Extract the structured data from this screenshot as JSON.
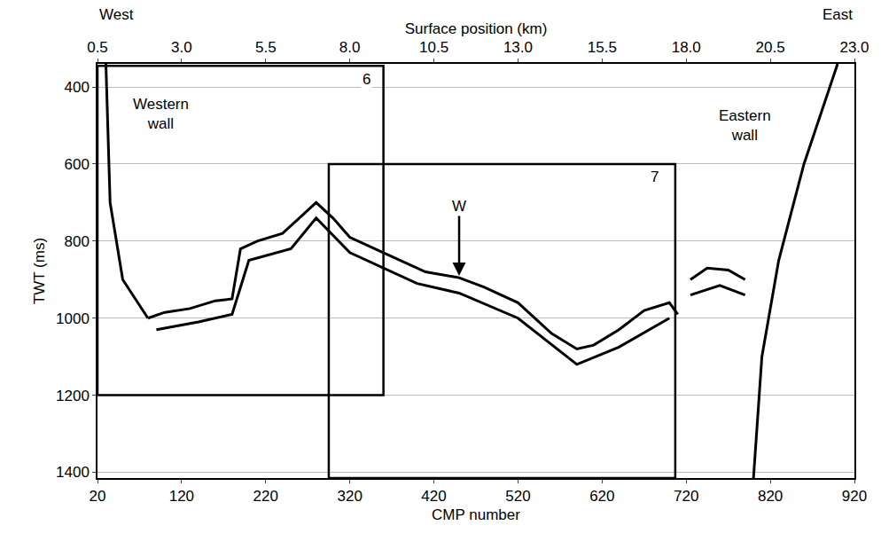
{
  "chart_data": {
    "type": "line",
    "x_label": "CMP number",
    "x2_label": "Surface position (km)",
    "y_label": "TWT (ms)",
    "corner_labels": [
      "West",
      "East"
    ],
    "xlim": [
      20,
      920
    ],
    "xticks": [
      20,
      120,
      220,
      320,
      420,
      520,
      620,
      720,
      820,
      920
    ],
    "x2lim": [
      0.5,
      23.0
    ],
    "x2ticks": [
      0.5,
      {
        "value": 3,
        "label": "3.0"
      },
      5.5,
      {
        "value": 8,
        "label": "8.0"
      },
      10.5,
      {
        "value": 13,
        "label": "13.0"
      },
      15.5,
      {
        "value": 18,
        "label": "18.0"
      },
      20.5,
      {
        "value": 23,
        "label": "23.0"
      }
    ],
    "ylim": [
      1415,
      340
    ],
    "yticks": [
      400,
      600,
      800,
      1000,
      1200,
      1400
    ],
    "grid": true,
    "series": [
      {
        "x": [
          80,
          100,
          130,
          160,
          180,
          190,
          210,
          240,
          260,
          280,
          300,
          320,
          350,
          380,
          410,
          450,
          480,
          520,
          560,
          590,
          610,
          640,
          670,
          700,
          710,
          715,
          725,
          745,
          770,
          790
        ],
        "values": [
          1000,
          985,
          975,
          955,
          950,
          820,
          800,
          780,
          740,
          700,
          740,
          790,
          820,
          850,
          880,
          895,
          920,
          960,
          1040,
          1080,
          1070,
          1030,
          980,
          960,
          990,
          null,
          900,
          870,
          875,
          900
        ],
        "color": "#000000",
        "line_style": "solid"
      },
      {
        "x": [
          90,
          140,
          180,
          200,
          250,
          280,
          320,
          400,
          450,
          520,
          590,
          640,
          700,
          715,
          725,
          760,
          790
        ],
        "values": [
          1030,
          1010,
          990,
          850,
          820,
          740,
          830,
          910,
          935,
          1000,
          1120,
          1075,
          1000,
          null,
          940,
          915,
          940
        ],
        "color": "#000000",
        "line_style": "solid"
      },
      {
        "x": [
          30,
          35,
          50,
          80
        ],
        "values": [
          340,
          700,
          900,
          1000
        ],
        "color": "#000000",
        "line_style": "solid"
      },
      {
        "x": [
          900,
          860,
          830,
          810,
          800
        ],
        "values": [
          340,
          600,
          850,
          1100,
          1415
        ],
        "color": "#000000",
        "line_style": "solid"
      }
    ],
    "boxes": [
      {
        "label": "6",
        "x": [
          20,
          360
        ],
        "y": [
          345,
          1200
        ]
      },
      {
        "label": "7",
        "x": [
          295,
          707
        ],
        "y": [
          600,
          1415
        ]
      }
    ],
    "annotations": [
      {
        "text": "Western wall",
        "x": 95,
        "y": 470
      },
      {
        "text": "Eastern wall",
        "x": 790,
        "y": 500
      },
      {
        "text": "W",
        "x": 450,
        "y": 735,
        "arrow_to": 890
      }
    ]
  }
}
